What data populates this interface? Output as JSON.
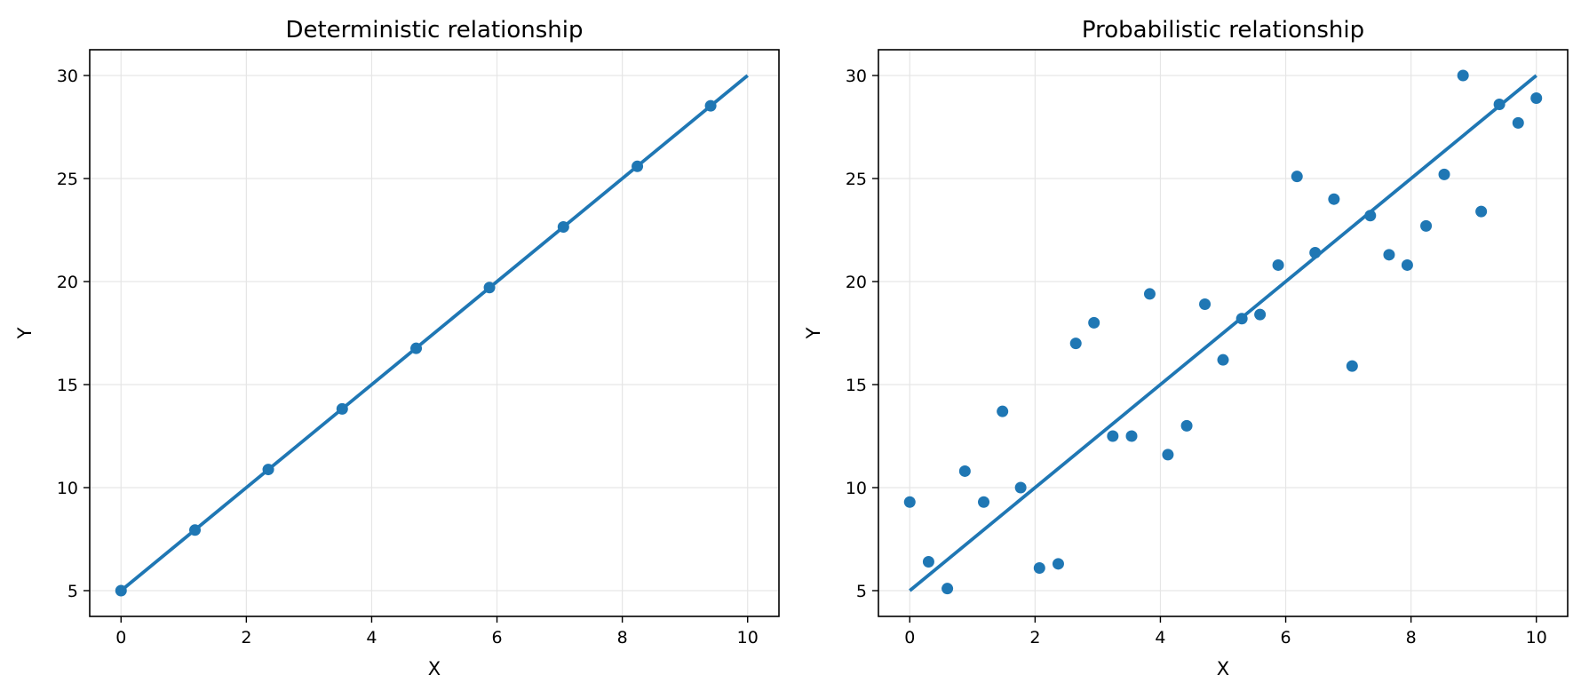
{
  "chart_data": [
    {
      "type": "line",
      "title": "Deterministic relationship",
      "xlabel": "X",
      "ylabel": "Y",
      "xlim": [
        -0.5,
        10.5
      ],
      "ylim": [
        3.75,
        31.25
      ],
      "xticks": [
        0,
        2,
        4,
        6,
        8,
        10
      ],
      "yticks": [
        5,
        10,
        15,
        20,
        25,
        30
      ],
      "grid": true,
      "color": "#1f77b4",
      "series": [
        {
          "type": "line",
          "x": [
            0,
            10
          ],
          "y": [
            5,
            30
          ]
        },
        {
          "type": "scatter",
          "x": [
            0,
            1.18,
            2.35,
            3.53,
            4.71,
            5.88,
            7.06,
            8.24,
            9.41
          ],
          "y": [
            5.0,
            7.94,
            10.88,
            13.82,
            16.76,
            19.71,
            22.65,
            25.59,
            28.53
          ]
        }
      ]
    },
    {
      "type": "scatter",
      "title": "Probabilistic relationship",
      "xlabel": "X",
      "ylabel": "Y",
      "xlim": [
        -0.5,
        10.5
      ],
      "ylim": [
        3.75,
        31.25
      ],
      "xticks": [
        0,
        2,
        4,
        6,
        8,
        10
      ],
      "yticks": [
        5,
        10,
        15,
        20,
        25,
        30
      ],
      "grid": true,
      "color": "#1f77b4",
      "series": [
        {
          "type": "line",
          "x": [
            0,
            10
          ],
          "y": [
            5,
            30
          ]
        },
        {
          "type": "scatter",
          "x": [
            0.0,
            0.3,
            0.6,
            0.88,
            1.18,
            1.48,
            1.77,
            2.07,
            2.37,
            2.65,
            2.94,
            3.24,
            3.54,
            3.83,
            4.12,
            4.42,
            4.71,
            5.0,
            5.3,
            5.59,
            5.88,
            6.18,
            6.47,
            6.77,
            7.06,
            7.35,
            7.65,
            7.94,
            8.24,
            8.53,
            8.83,
            9.12,
            9.41,
            9.71,
            10.0
          ],
          "y": [
            9.3,
            6.4,
            5.1,
            10.8,
            9.3,
            13.7,
            10.0,
            6.1,
            6.3,
            17.0,
            18.0,
            12.5,
            12.5,
            19.4,
            11.6,
            13.0,
            18.9,
            16.2,
            18.2,
            18.4,
            20.8,
            25.1,
            21.4,
            24.0,
            15.9,
            23.2,
            21.3,
            20.8,
            22.7,
            25.2,
            30.0,
            23.4,
            28.6,
            27.7,
            28.9
          ]
        }
      ]
    }
  ]
}
